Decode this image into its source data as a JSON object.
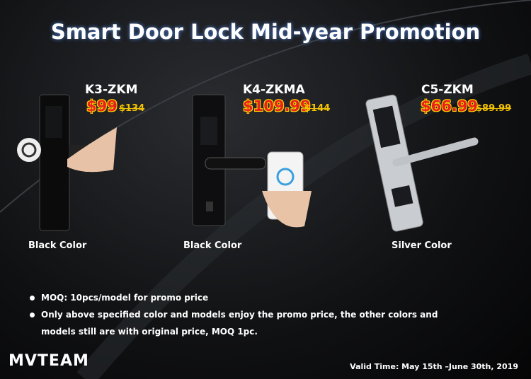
{
  "title": "Smart Door Lock Mid-year Promotion",
  "products": [
    {
      "name": "K3-ZKM",
      "price": "$99",
      "old_price": "$134",
      "color": "Black Color"
    },
    {
      "name": "K4-ZKMA",
      "price": "$109.99",
      "old_price": "$144",
      "color": "Black Color"
    },
    {
      "name": "C5-ZKM",
      "price": "$66.99",
      "old_price": "$89.99",
      "color": "Silver Color"
    }
  ],
  "notes": [
    "MOQ: 10pcs/model for promo price",
    "Only above specified color and models enjoy the promo price, the other colors and models still are with original price, MOQ 1pc."
  ],
  "logo": "MVTEAM",
  "valid_time": "Valid Time: May 15th –June 30th, 2019"
}
